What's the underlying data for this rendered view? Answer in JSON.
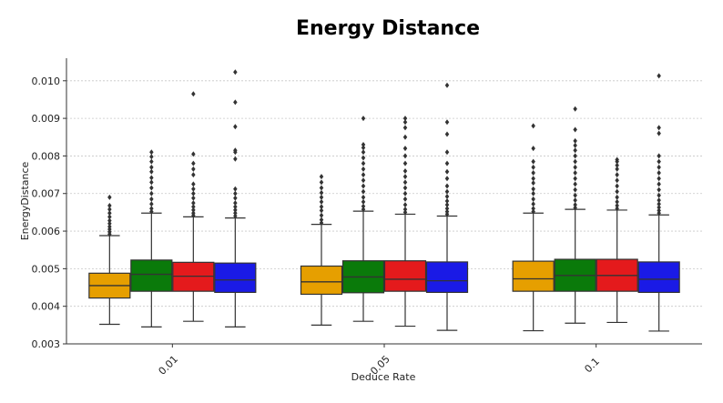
{
  "chart_data": {
    "type": "box",
    "title": "Energy Distance",
    "xlabel": "Deduce Rate",
    "ylabel": "EnergyDistance",
    "categories": [
      "0.01",
      "0.05",
      "0.1"
    ],
    "ylim": [
      0.003,
      0.0106
    ],
    "yticks": [
      "0.003",
      "0.004",
      "0.005",
      "0.006",
      "0.007",
      "0.008",
      "0.009",
      "0.010"
    ],
    "grid": "horizontal-dotted",
    "legend": "none",
    "series": [
      {
        "color": "#E69F00",
        "boxes": [
          {
            "min": 0.00352,
            "q1": 0.00422,
            "median": 0.00455,
            "q3": 0.00488,
            "max": 0.00588,
            "outliers": [
              0.00592,
              0.00598,
              0.00605,
              0.00612,
              0.0062,
              0.00628,
              0.00638,
              0.00648,
              0.00658,
              0.00668,
              0.0069
            ]
          },
          {
            "min": 0.0035,
            "q1": 0.00432,
            "median": 0.00465,
            "q3": 0.00507,
            "max": 0.00618,
            "outliers": [
              0.00622,
              0.0063,
              0.00642,
              0.00655,
              0.00665,
              0.00678,
              0.0069,
              0.00702,
              0.00715,
              0.0073,
              0.00745
            ]
          },
          {
            "min": 0.00335,
            "q1": 0.0044,
            "median": 0.00473,
            "q3": 0.0052,
            "max": 0.00648,
            "outliers": [
              0.00652,
              0.0066,
              0.00672,
              0.00685,
              0.007,
              0.00712,
              0.00728,
              0.0074,
              0.00755,
              0.0077,
              0.00785,
              0.0082,
              0.0088
            ]
          }
        ]
      },
      {
        "color": "#0A7A0A",
        "boxes": [
          {
            "min": 0.00345,
            "q1": 0.0044,
            "median": 0.00485,
            "q3": 0.00523,
            "max": 0.00648,
            "outliers": [
              0.00652,
              0.0066,
              0.00672,
              0.00685,
              0.007,
              0.00715,
              0.0073,
              0.00742,
              0.00758,
              0.0077,
              0.00785,
              0.00798,
              0.0081
            ]
          },
          {
            "min": 0.0036,
            "q1": 0.00436,
            "median": 0.00478,
            "q3": 0.00521,
            "max": 0.00653,
            "outliers": [
              0.00658,
              0.00666,
              0.00678,
              0.0069,
              0.00705,
              0.0072,
              0.00735,
              0.0075,
              0.00765,
              0.0078,
              0.00795,
              0.0081,
              0.00822,
              0.0083,
              0.009
            ]
          },
          {
            "min": 0.00355,
            "q1": 0.0044,
            "median": 0.00482,
            "q3": 0.00525,
            "max": 0.00658,
            "outliers": [
              0.00662,
              0.0067,
              0.00682,
              0.00695,
              0.0071,
              0.00725,
              0.0074,
              0.00755,
              0.0077,
              0.00785,
              0.008,
              0.00815,
              0.00828,
              0.0084,
              0.0087,
              0.00925
            ]
          }
        ]
      },
      {
        "color": "#E41A1C",
        "boxes": [
          {
            "min": 0.0036,
            "q1": 0.0044,
            "median": 0.0048,
            "q3": 0.00517,
            "max": 0.00638,
            "outliers": [
              0.00642,
              0.00648,
              0.00656,
              0.00665,
              0.00675,
              0.00688,
              0.007,
              0.00712,
              0.00725,
              0.0075,
              0.00765,
              0.0078,
              0.00805,
              0.00965
            ]
          },
          {
            "min": 0.00347,
            "q1": 0.0044,
            "median": 0.00472,
            "q3": 0.00521,
            "max": 0.00645,
            "outliers": [
              0.0065,
              0.00658,
              0.0067,
              0.00685,
              0.007,
              0.00715,
              0.0073,
              0.00745,
              0.0076,
              0.0078,
              0.008,
              0.0082,
              0.0085,
              0.00875,
              0.0089,
              0.009
            ]
          },
          {
            "min": 0.00357,
            "q1": 0.0044,
            "median": 0.00482,
            "q3": 0.00525,
            "max": 0.00656,
            "outliers": [
              0.0066,
              0.00668,
              0.00678,
              0.0069,
              0.00705,
              0.0072,
              0.00735,
              0.0075,
              0.00765,
              0.00775,
              0.00785,
              0.0079
            ]
          }
        ]
      },
      {
        "color": "#1A1AE6",
        "boxes": [
          {
            "min": 0.00345,
            "q1": 0.00437,
            "median": 0.0047,
            "q3": 0.00515,
            "max": 0.00635,
            "outliers": [
              0.0064,
              0.00648,
              0.00656,
              0.00665,
              0.00675,
              0.00688,
              0.007,
              0.00712,
              0.00792,
              0.0081,
              0.00815,
              0.00878,
              0.00943,
              0.01023
            ]
          },
          {
            "min": 0.00336,
            "q1": 0.00437,
            "median": 0.00468,
            "q3": 0.00518,
            "max": 0.0064,
            "outliers": [
              0.00645,
              0.00652,
              0.0066,
              0.0067,
              0.0068,
              0.00692,
              0.00705,
              0.0072,
              0.0074,
              0.00758,
              0.0078,
              0.0081,
              0.00858,
              0.0089,
              0.00988
            ]
          },
          {
            "min": 0.00334,
            "q1": 0.00437,
            "median": 0.00472,
            "q3": 0.00518,
            "max": 0.00643,
            "outliers": [
              0.00648,
              0.00655,
              0.00663,
              0.00672,
              0.00682,
              0.00695,
              0.0071,
              0.00725,
              0.0074,
              0.00755,
              0.0077,
              0.00785,
              0.008,
              0.0086,
              0.00875,
              0.01013
            ]
          }
        ]
      }
    ]
  }
}
